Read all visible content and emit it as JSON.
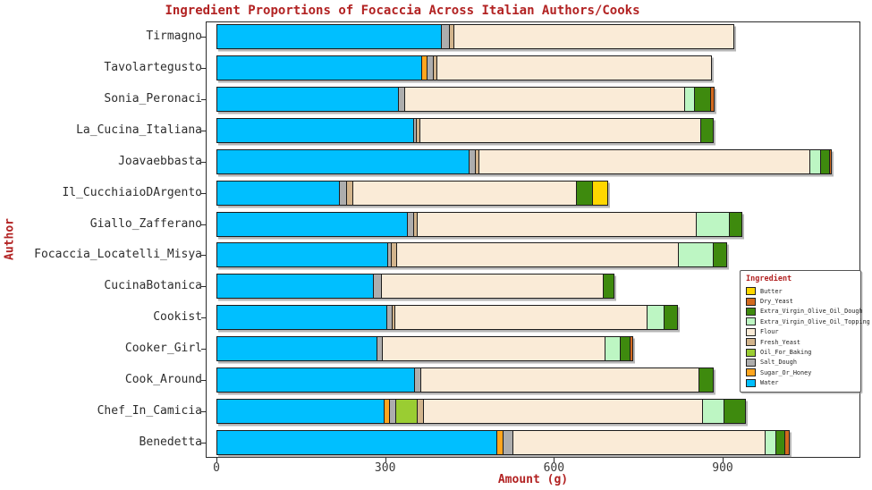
{
  "title": "Ingredient Proportions of Focaccia Across Italian Authors/Cooks",
  "x_axis": {
    "label": "Amount (g)",
    "ticks": [
      0,
      300,
      600,
      900
    ]
  },
  "y_axis": {
    "label": "Author"
  },
  "colors": {
    "accent_text": "#B22222",
    "tick_text": "#3A3A3A",
    "frame": "#2B2B2B",
    "background": "#FFFFFF"
  },
  "legend": {
    "title": "Ingredient",
    "entries": [
      {
        "label": "Butter",
        "color": "#FFD700"
      },
      {
        "label": "Dry_Yeast",
        "color": "#D2691E"
      },
      {
        "label": "Extra_Virgin_Olive_Oil_Dough",
        "color": "#3E8A0E"
      },
      {
        "label": "Extra_Virgin_Olive_Oil_Topping",
        "color": "#BDF6C3"
      },
      {
        "label": "Flour",
        "color": "#FAEBD7"
      },
      {
        "label": "Fresh_Yeast",
        "color": "#D2B48C"
      },
      {
        "label": "Oil_For_Baking",
        "color": "#9ACD32"
      },
      {
        "label": "Salt_Dough",
        "color": "#ADADAD"
      },
      {
        "label": "Sugar_Or_Honey",
        "color": "#FFA51E"
      },
      {
        "label": "Water",
        "color": "#00BFFF"
      }
    ]
  },
  "chart_data": {
    "type": "bar",
    "orientation": "horizontal",
    "stacked": true,
    "title": "Ingredient Proportions of Focaccia Across Italian Authors/Cooks",
    "xlabel": "Amount (g)",
    "ylabel": "Author",
    "xlim": [
      0,
      1145
    ],
    "x_ticks": [
      0,
      300,
      600,
      900
    ],
    "grid": false,
    "legend_position": "center-right",
    "categories": [
      "Tirmagno",
      "Tavolartegusto",
      "Sonia_Peronaci",
      "La_Cucina_Italiana",
      "Joavaebbasta",
      "Il_CucchiaioDArgento",
      "Giallo_Zafferano",
      "Focaccia_Locatelli_Misya",
      "CucinaBotanica",
      "Cookist",
      "Cooker_Girl",
      "Cook_Around",
      "Chef_In_Camicia",
      "Benedetta"
    ],
    "series": [
      {
        "name": "Water",
        "color": "#00BFFF",
        "values": [
          400,
          365,
          325,
          352,
          450,
          220,
          340,
          305,
          280,
          304,
          286,
          353,
          299,
          499
        ]
      },
      {
        "name": "Sugar_Or_Honey",
        "color": "#FFA51E",
        "values": [
          0,
          12,
          0,
          0,
          0,
          0,
          0,
          0,
          0,
          0,
          0,
          0,
          11,
          13
        ]
      },
      {
        "name": "Salt_Dough",
        "color": "#ADADAD",
        "values": [
          16,
          12,
          12,
          6,
          13,
          13,
          13,
          8,
          15,
          11,
          11,
          12,
          13,
          19
        ]
      },
      {
        "name": "Oil_For_Baking",
        "color": "#9ACD32",
        "values": [
          0,
          0,
          0,
          0,
          0,
          0,
          0,
          0,
          0,
          0,
          0,
          0,
          40,
          0
        ]
      },
      {
        "name": "Fresh_Yeast",
        "color": "#D2B48C",
        "values": [
          10,
          8,
          0,
          8,
          8,
          13,
          8,
          11,
          0,
          6,
          0,
          0,
          12,
          0
        ]
      },
      {
        "name": "Flour",
        "color": "#FAEBD7",
        "values": [
          500,
          490,
          500,
          500,
          590,
          400,
          498,
          503,
          396,
          450,
          398,
          497,
          498,
          450
        ]
      },
      {
        "name": "Extra_Virgin_Olive_Oil_Topping",
        "color": "#BDF6C3",
        "values": [
          0,
          0,
          19,
          0,
          21,
          0,
          60,
          64,
          0,
          32,
          29,
          0,
          40,
          21
        ]
      },
      {
        "name": "Extra_Virgin_Olive_Oil_Dough",
        "color": "#3E8A0E",
        "values": [
          0,
          0,
          30,
          24,
          17,
          30,
          24,
          25,
          22,
          26,
          19,
          27,
          39,
          17
        ]
      },
      {
        "name": "Dry_Yeast",
        "color": "#D2691E",
        "values": [
          0,
          0,
          8,
          0,
          4,
          0,
          0,
          0,
          0,
          0,
          6,
          0,
          0,
          10
        ]
      },
      {
        "name": "Butter",
        "color": "#FFD700",
        "values": [
          0,
          0,
          0,
          0,
          0,
          28,
          0,
          0,
          0,
          0,
          0,
          0,
          0,
          0
        ]
      }
    ]
  }
}
